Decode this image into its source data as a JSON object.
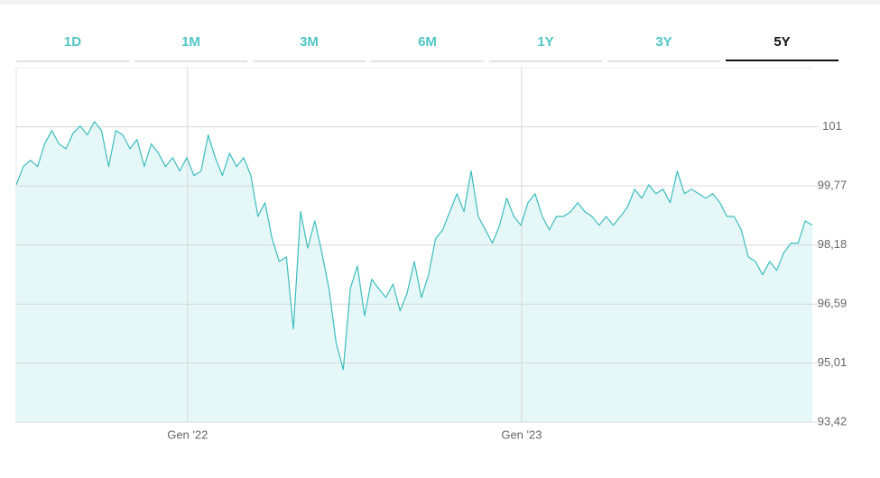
{
  "tabs": [
    "1D",
    "1M",
    "3M",
    "6M",
    "1Y",
    "3Y",
    "5Y"
  ],
  "active_tab": 6,
  "chart_data": {
    "type": "area",
    "color": "#3dbdbd",
    "fill": "#e6f7f7",
    "grid": true,
    "values": [
      99.8,
      100.29,
      100.46,
      100.29,
      100.9,
      101.26,
      100.9,
      100.77,
      101.19,
      101.38,
      101.14,
      101.5,
      101.26,
      100.29,
      101.26,
      101.14,
      100.77,
      101.02,
      100.29,
      100.9,
      100.65,
      100.29,
      100.53,
      100.17,
      100.53,
      100.05,
      100.17,
      101.14,
      100.53,
      100.05,
      100.65,
      100.29,
      100.53,
      100.05,
      98.95,
      99.32,
      98.35,
      97.74,
      97.86,
      95.92,
      99.08,
      98.1,
      98.83,
      97.98,
      97.01,
      95.56,
      94.83,
      97.01,
      97.62,
      96.28,
      97.26,
      97.01,
      96.77,
      97.13,
      96.41,
      96.89,
      97.74,
      96.77,
      97.38,
      98.35,
      98.59,
      99.08,
      99.56,
      99.08,
      100.17,
      98.95,
      98.59,
      98.23,
      98.71,
      99.44,
      98.95,
      98.71,
      99.32,
      99.56,
      98.95,
      98.59,
      98.95,
      98.95,
      99.08,
      99.32,
      99.08,
      98.95,
      98.71,
      98.95,
      98.71,
      98.95,
      99.2,
      99.68,
      99.44,
      99.8,
      99.56,
      99.68,
      99.32,
      100.17,
      99.56,
      99.68,
      99.56,
      99.44,
      99.56,
      99.32,
      98.95,
      98.95,
      98.59,
      97.86,
      97.74,
      97.38,
      97.74,
      97.5,
      97.98,
      98.23,
      98.23,
      98.83,
      98.71
    ],
    "xlim": [
      0,
      112
    ],
    "xticks": [
      {
        "value": 24.1,
        "label": "Gen '22"
      },
      {
        "value": 71.1,
        "label": "Gen '23"
      }
    ],
    "ylim": [
      93.42,
      102.95
    ],
    "yticks": [
      {
        "value": 93.42,
        "label": "93,42"
      },
      {
        "value": 95.01,
        "label": "95,01"
      },
      {
        "value": 96.59,
        "label": "96,59"
      },
      {
        "value": 98.18,
        "label": "98,18"
      },
      {
        "value": 99.77,
        "label": "99,77"
      },
      {
        "value": 101.36,
        "label": "101"
      }
    ]
  }
}
